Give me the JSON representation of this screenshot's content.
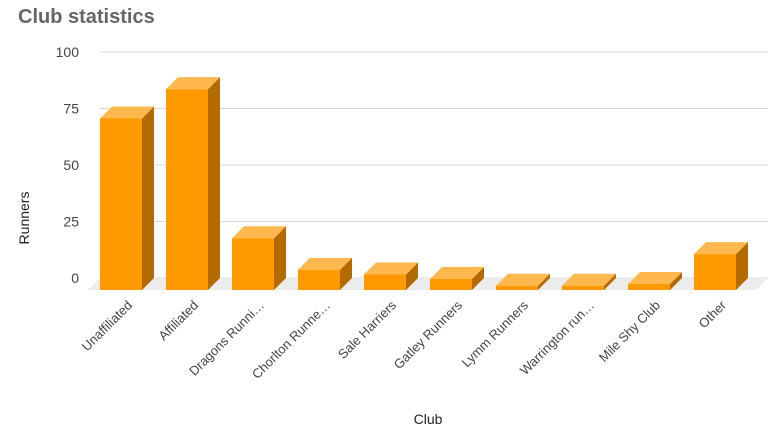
{
  "chart_data": {
    "type": "bar",
    "title": "Club statistics",
    "xlabel": "Club",
    "ylabel": "Runners",
    "categories": [
      "Unaffiliated",
      "Affiliated",
      "Dragons Runni…",
      "Chorlton Runne…",
      "Sale Harriers",
      "Gatley Runners",
      "Lymm Runners",
      "Warrington run…",
      "Mile Shy Club",
      "Other"
    ],
    "values": [
      75,
      88,
      22,
      8,
      6,
      4,
      1,
      1,
      0,
      15
    ],
    "yticks": [
      0,
      25,
      50,
      75,
      100
    ],
    "ylim": [
      0,
      100
    ],
    "grid": true,
    "legend": "none",
    "colors": {
      "bar_front": "#ff9900",
      "bar_side": "#b36b00",
      "bar_top": "#ffb84d",
      "grid": "#d9d9d9",
      "floor": "#ececec"
    }
  }
}
